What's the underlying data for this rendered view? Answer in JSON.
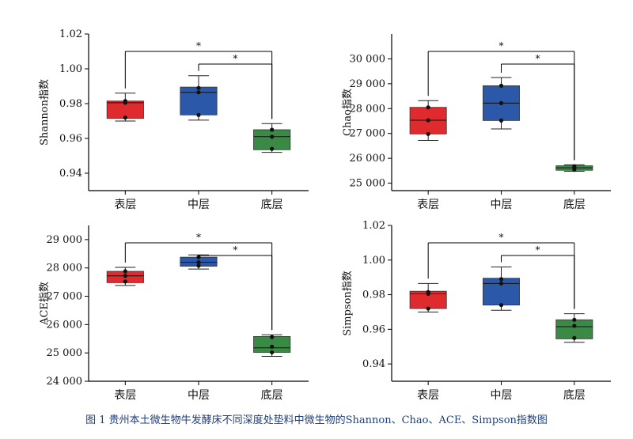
{
  "caption": "图 1 贵州本土微生物牛发酵床不同深度处垫料中微生物的Shannon、Chao、ACE、Simpson指数图",
  "colors": {
    "表层": "#e02b2e",
    "中层": "#2b58a8",
    "底层": "#3a8a46"
  },
  "chart_data": [
    {
      "type": "box",
      "ylabel": "Shannon指数",
      "ylim": [
        0.93,
        1.02
      ],
      "yticks": [
        "0.94",
        "0.96",
        "0.98",
        "1.00",
        "1.02"
      ],
      "ytick_values": [
        0.94,
        0.96,
        0.98,
        1.0,
        1.02
      ],
      "categories": [
        "表层",
        "中层",
        "底层"
      ],
      "boxes": [
        {
          "q1": 0.9715,
          "median": 0.9805,
          "q3": 0.9815,
          "min": 0.97,
          "max": 0.986,
          "points": [
            0.972,
            0.9805,
            0.9815
          ]
        },
        {
          "q1": 0.9735,
          "median": 0.9865,
          "q3": 0.9895,
          "min": 0.9705,
          "max": 0.996,
          "points": [
            0.9735,
            0.9865,
            0.989
          ]
        },
        {
          "q1": 0.9535,
          "median": 0.961,
          "q3": 0.965,
          "min": 0.952,
          "max": 0.9685,
          "points": [
            0.954,
            0.961,
            0.965
          ]
        }
      ],
      "significance": [
        {
          "from": 0,
          "to": 2,
          "label": "*"
        },
        {
          "from": 1,
          "to": 2,
          "label": "*"
        }
      ]
    },
    {
      "type": "box",
      "ylabel": "Chao指数",
      "ylim": [
        24700,
        31000
      ],
      "yticks": [
        "25 000",
        "26 000",
        "27 000",
        "28 000",
        "29 000",
        "30 000"
      ],
      "ytick_values": [
        25000,
        26000,
        27000,
        28000,
        29000,
        30000
      ],
      "categories": [
        "表层",
        "中层",
        "底层"
      ],
      "boxes": [
        {
          "q1": 26980,
          "median": 27530,
          "q3": 28050,
          "min": 26720,
          "max": 28320,
          "points": [
            26980,
            27530,
            28050
          ]
        },
        {
          "q1": 27520,
          "median": 28220,
          "q3": 28920,
          "min": 27180,
          "max": 29250,
          "points": [
            27520,
            28220,
            28920
          ]
        },
        {
          "q1": 25520,
          "median": 25620,
          "q3": 25700,
          "min": 25480,
          "max": 25740,
          "points": [
            25540,
            25620,
            25680
          ]
        }
      ],
      "significance": [
        {
          "from": 0,
          "to": 2,
          "label": "*"
        },
        {
          "from": 1,
          "to": 2,
          "label": "*"
        }
      ]
    },
    {
      "type": "box",
      "ylabel": "ACE指数",
      "ylim": [
        24000,
        29500
      ],
      "yticks": [
        "24 000",
        "25 000",
        "26 000",
        "27 000",
        "28 000",
        "29 000"
      ],
      "ytick_values": [
        24000,
        25000,
        26000,
        27000,
        28000,
        29000
      ],
      "categories": [
        "表层",
        "中层",
        "底层"
      ],
      "boxes": [
        {
          "q1": 27480,
          "median": 27720,
          "q3": 27880,
          "min": 27380,
          "max": 28020,
          "points": [
            27520,
            27720,
            27880
          ]
        },
        {
          "q1": 28060,
          "median": 28200,
          "q3": 28380,
          "min": 27960,
          "max": 28460,
          "points": [
            28080,
            28200,
            28380
          ]
        },
        {
          "q1": 25020,
          "median": 25180,
          "q3": 25580,
          "min": 24880,
          "max": 25640,
          "points": [
            25020,
            25220,
            25560
          ]
        }
      ],
      "significance": [
        {
          "from": 0,
          "to": 2,
          "label": "*"
        },
        {
          "from": 1,
          "to": 2,
          "label": "*"
        }
      ]
    },
    {
      "type": "box",
      "ylabel": "Simpson指数",
      "ylim": [
        0.93,
        1.02
      ],
      "yticks": [
        "0.94",
        "0.96",
        "0.98",
        "1.00",
        "1.02"
      ],
      "ytick_values": [
        0.94,
        0.96,
        0.98,
        1.0,
        1.02
      ],
      "categories": [
        "表层",
        "中层",
        "底层"
      ],
      "boxes": [
        {
          "q1": 0.972,
          "median": 0.9805,
          "q3": 0.982,
          "min": 0.97,
          "max": 0.9865,
          "points": [
            0.972,
            0.9805,
            0.9815
          ]
        },
        {
          "q1": 0.974,
          "median": 0.9865,
          "q3": 0.9895,
          "min": 0.971,
          "max": 0.996,
          "points": [
            0.974,
            0.9865,
            0.989
          ]
        },
        {
          "q1": 0.9545,
          "median": 0.9615,
          "q3": 0.9655,
          "min": 0.9525,
          "max": 0.969,
          "points": [
            0.955,
            0.962,
            0.9655
          ]
        }
      ],
      "significance": [
        {
          "from": 0,
          "to": 2,
          "label": "*"
        },
        {
          "from": 1,
          "to": 2,
          "label": "*"
        }
      ]
    }
  ]
}
